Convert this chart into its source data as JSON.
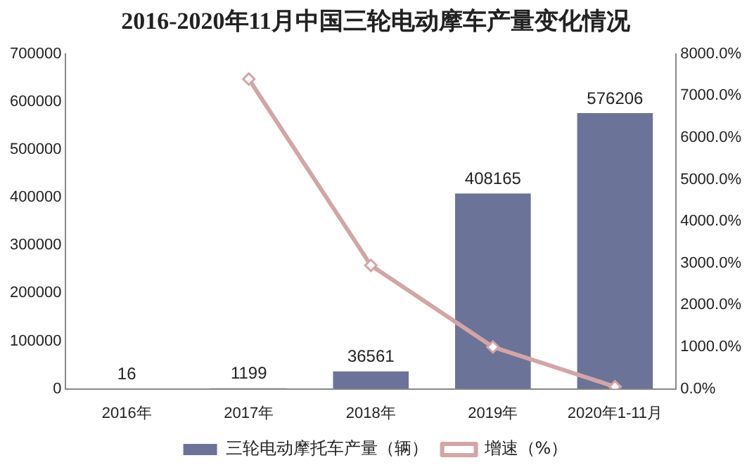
{
  "chart_data": {
    "type": "bar",
    "title": "2016-2020年11月中国三轮电动摩车产量变化情况",
    "categories": [
      "2016年",
      "2017年",
      "2018年",
      "2019年",
      "2020年1-11月"
    ],
    "series": [
      {
        "name": "三轮电动摩托车产量（辆）",
        "color": "#6b7399",
        "values": [
          16,
          1199,
          36561,
          408165,
          576206
        ],
        "value_labels": [
          "16",
          "1199",
          "36561",
          "408165",
          "576206"
        ]
      },
      {
        "name": "增速（%）",
        "type": "line",
        "axis": "y2",
        "color": "#d4a5a5",
        "values": [
          null,
          7400,
          2950,
          1000,
          50
        ]
      }
    ],
    "ylim": [
      0,
      700000
    ],
    "yticks": [
      0,
      100000,
      200000,
      300000,
      400000,
      500000,
      600000,
      700000
    ],
    "y2lim": [
      0,
      8000
    ],
    "y2ticks": [
      {
        "value": 0,
        "label": "0.0%"
      },
      {
        "value": 1000,
        "label": "1000.0%"
      },
      {
        "value": 2000,
        "label": "2000.0%"
      },
      {
        "value": 3000,
        "label": "3000.0%"
      },
      {
        "value": 4000,
        "label": "4000.0%"
      },
      {
        "value": 5000,
        "label": "5000.0%"
      },
      {
        "value": 6000,
        "label": "6000.0%"
      },
      {
        "value": 7000,
        "label": "7000.0%"
      },
      {
        "value": 8000,
        "label": "8000.0%"
      }
    ],
    "legend": "bottom",
    "marker": "diamond"
  }
}
